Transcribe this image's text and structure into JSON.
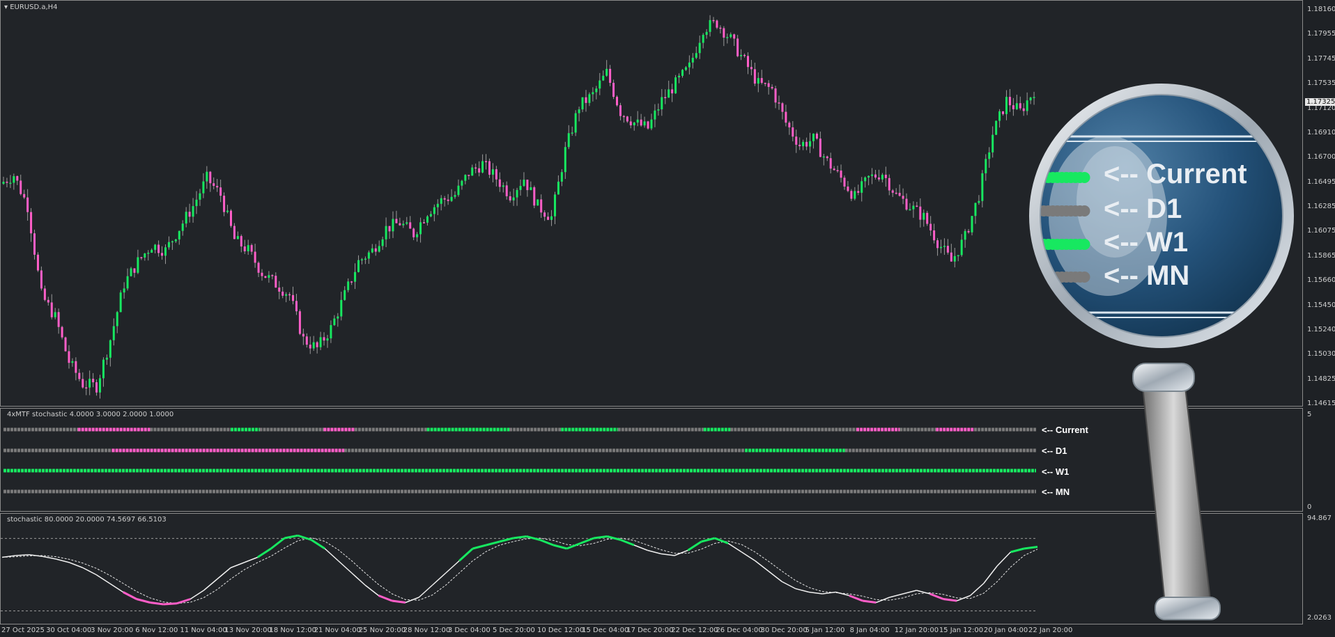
{
  "chart_header": {
    "symbol_label": "EURUSD.a,H4",
    "dropdown_icon": "triangle-down-icon"
  },
  "price_axis": {
    "labels": [
      "1.18160",
      "1.17955",
      "1.17745",
      "1.17535",
      "1.17120",
      "1.16910",
      "1.16700",
      "1.16495",
      "1.16285",
      "1.16075",
      "1.15865",
      "1.15660",
      "1.15450",
      "1.15240",
      "1.15030",
      "1.14825",
      "1.14615"
    ],
    "current_price": "1.17325"
  },
  "mtf_indicator": {
    "title": "4xMTF stochastic  4.0000 3.0000 2.0000 1.0000",
    "axis_top": "5",
    "axis_bottom": "0",
    "rows": [
      {
        "tag": "<-- Current",
        "segments": [
          {
            "from": 0,
            "to": 0.072,
            "state": "neutral"
          },
          {
            "from": 0.072,
            "to": 0.142,
            "state": "down"
          },
          {
            "from": 0.142,
            "to": 0.22,
            "state": "neutral"
          },
          {
            "from": 0.22,
            "to": 0.248,
            "state": "up"
          },
          {
            "from": 0.248,
            "to": 0.31,
            "state": "neutral"
          },
          {
            "from": 0.31,
            "to": 0.34,
            "state": "down"
          },
          {
            "from": 0.34,
            "to": 0.41,
            "state": "neutral"
          },
          {
            "from": 0.41,
            "to": 0.49,
            "state": "up"
          },
          {
            "from": 0.49,
            "to": 0.54,
            "state": "neutral"
          },
          {
            "from": 0.54,
            "to": 0.595,
            "state": "up"
          },
          {
            "from": 0.595,
            "to": 0.678,
            "state": "neutral"
          },
          {
            "from": 0.678,
            "to": 0.704,
            "state": "up"
          },
          {
            "from": 0.704,
            "to": 0.826,
            "state": "neutral"
          },
          {
            "from": 0.826,
            "to": 0.868,
            "state": "down"
          },
          {
            "from": 0.868,
            "to": 0.903,
            "state": "neutral"
          },
          {
            "from": 0.903,
            "to": 0.94,
            "state": "down"
          },
          {
            "from": 0.94,
            "to": 1,
            "state": "neutral"
          }
        ]
      },
      {
        "tag": "<-- D1",
        "segments": [
          {
            "from": 0,
            "to": 0.105,
            "state": "neutral"
          },
          {
            "from": 0.105,
            "to": 0.33,
            "state": "down"
          },
          {
            "from": 0.33,
            "to": 0.718,
            "state": "neutral"
          },
          {
            "from": 0.718,
            "to": 0.815,
            "state": "up"
          },
          {
            "from": 0.815,
            "to": 1,
            "state": "neutral"
          }
        ]
      },
      {
        "tag": "<-- W1",
        "segments": [
          {
            "from": 0,
            "to": 1,
            "state": "up"
          }
        ]
      },
      {
        "tag": "<-- MN",
        "segments": [
          {
            "from": 0,
            "to": 1,
            "state": "neutral"
          }
        ]
      }
    ]
  },
  "stochastic": {
    "title": "stochastic  80.0000 20.0000 74.5697 66.5103",
    "axis_top": "94.867",
    "axis_bottom": "2.0263",
    "main": [
      70,
      72,
      73,
      71,
      68,
      64,
      58,
      50,
      40,
      30,
      22,
      18,
      16,
      17,
      22,
      32,
      45,
      58,
      64,
      70,
      80,
      92,
      95,
      90,
      80,
      66,
      52,
      38,
      26,
      20,
      18,
      24,
      38,
      52,
      66,
      80,
      84,
      88,
      92,
      94,
      90,
      84,
      80,
      86,
      92,
      94,
      90,
      84,
      78,
      74,
      72,
      78,
      88,
      92,
      86,
      76,
      66,
      54,
      42,
      34,
      30,
      28,
      30,
      26,
      20,
      18,
      24,
      28,
      32,
      28,
      22,
      20,
      26,
      40,
      60,
      76,
      80,
      82
    ]
  },
  "time_axis": {
    "labels": [
      "27 Oct 2025",
      "30 Oct 04:00",
      "3 Nov 20:00",
      "6 Nov 12:00",
      "11 Nov 04:00",
      "13 Nov 20:00",
      "18 Nov 12:00",
      "21 Nov 04:00",
      "25 Nov 20:00",
      "28 Nov 12:00",
      "3 Dec 04:00",
      "5 Dec 20:00",
      "10 Dec 12:00",
      "15 Dec 04:00",
      "17 Dec 20:00",
      "22 Dec 12:00",
      "26 Dec 04:00",
      "30 Dec 20:00",
      "5 Jan 12:00",
      "8 Jan 04:00",
      "12 Jan 20:00",
      "15 Jan 12:00",
      "20 Jan 04:00",
      "22 Jan 20:00"
    ]
  },
  "candles_close": [
    1.166,
    1.1668,
    1.164,
    1.156,
    1.154,
    1.15,
    1.148,
    1.1478,
    1.152,
    1.157,
    1.159,
    1.1605,
    1.16,
    1.162,
    1.164,
    1.1665,
    1.165,
    1.161,
    1.16,
    1.158,
    1.157,
    1.156,
    1.152,
    1.1512,
    1.153,
    1.156,
    1.159,
    1.16,
    1.162,
    1.1625,
    1.1615,
    1.1635,
    1.1645,
    1.165,
    1.167,
    1.1678,
    1.1665,
    1.165,
    1.1665,
    1.164,
    1.163,
    1.169,
    1.173,
    1.174,
    1.176,
    1.1725,
    1.1715,
    1.171,
    1.1735,
    1.175,
    1.1765,
    1.18,
    1.1805,
    1.179,
    1.177,
    1.175,
    1.1745,
    1.1715,
    1.1695,
    1.17,
    1.168,
    1.1665,
    1.1648,
    1.1665,
    1.167,
    1.165,
    1.164,
    1.163,
    1.1608,
    1.159,
    1.1612,
    1.165,
    1.1705,
    1.1735,
    1.1725,
    1.1744
  ],
  "colors": {
    "up": "#17e860",
    "down": "#ff5ec8",
    "neutral": "#7a7a7a",
    "background": "#212428",
    "level_line": "#9a9a9a"
  },
  "magnifier": {
    "tags": [
      "<-- Current",
      "<-- D1",
      "<-- W1",
      "<-- MN"
    ],
    "dot_states": [
      "up",
      "neutral",
      "up",
      "neutral"
    ]
  }
}
